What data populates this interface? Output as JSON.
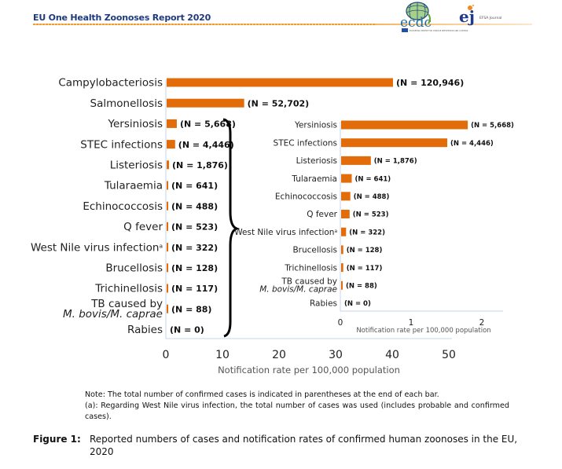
{
  "header": {
    "title": "EU One Health Zoonoses Report 2020",
    "logo_ecdc": "ecdc",
    "logo_ecdc_sub": "EUROPEAN CENTRE FOR DISEASE PREVENTION AND CONTROL",
    "logo_efsa": "ej",
    "logo_efsa_sub": "EFSA Journal"
  },
  "colors": {
    "bar": "#e36c0a",
    "axis": "#c9d6ea",
    "title": "#1f3a7a"
  },
  "chart_data": [
    {
      "type": "bar",
      "orientation": "horizontal",
      "xlabel": "Notification rate per 100,000 population",
      "xlim": [
        0,
        50
      ],
      "xticks": [
        "0",
        "10",
        "20",
        "30",
        "40",
        "50"
      ],
      "categories": [
        "Campylobacteriosis",
        "Salmonellosis",
        "Yersiniosis",
        "STEC infections",
        "Listeriosis",
        "Tularaemia",
        "Echinococcosis",
        "Q fever",
        "West Nile virus infection",
        "Brucellosis",
        "Trichinellosis",
        "TB caused by",
        "Rabies"
      ],
      "category_sub": [
        "",
        "",
        "",
        "",
        "",
        "",
        "",
        "",
        "",
        "",
        "",
        "M. bovis/M. caprae",
        ""
      ],
      "category_sup": [
        "",
        "",
        "",
        "",
        "",
        "",
        "",
        "",
        "a",
        "",
        "",
        "",
        ""
      ],
      "values": [
        40.0,
        13.7,
        1.8,
        1.5,
        0.42,
        0.15,
        0.13,
        0.12,
        0.07,
        0.03,
        0.03,
        0.02,
        0
      ],
      "labels": [
        "(N = 120,946)",
        "(N = 52,702)",
        "(N = 5,668)",
        "(N = 4,446)",
        "(N = 1,876)",
        "(N = 641)",
        "(N = 488)",
        "(N = 523)",
        "(N = 322)",
        "(N = 128)",
        "(N = 117)",
        "(N = 88)",
        "(N = 0)"
      ]
    },
    {
      "type": "bar",
      "orientation": "horizontal",
      "xlabel": "Notification rate per 100,000 population",
      "xlim": [
        0,
        2
      ],
      "xticks": [
        "0",
        "1",
        "2"
      ],
      "categories": [
        "Yersiniosis",
        "STEC infections",
        "Listeriosis",
        "Tularaemia",
        "Echinococcosis",
        "Q fever",
        "West Nile virus infection",
        "Brucellosis",
        "Trichinellosis",
        "TB caused by",
        "Rabies"
      ],
      "category_sub": [
        "",
        "",
        "",
        "",
        "",
        "",
        "",
        "",
        "",
        "M. bovis/M. caprae",
        ""
      ],
      "category_sup": [
        "",
        "",
        "",
        "",
        "",
        "",
        "a",
        "",
        "",
        "",
        ""
      ],
      "values": [
        1.79,
        1.5,
        0.42,
        0.15,
        0.13,
        0.12,
        0.07,
        0.03,
        0.03,
        0.02,
        0
      ],
      "labels": [
        "(N = 5,668)",
        "(N = 4,446)",
        "(N = 1,876)",
        "(N = 641)",
        "(N = 488)",
        "(N = 523)",
        "(N = 322)",
        "(N = 128)",
        "(N = 117)",
        "(N = 88)",
        "(N = 0)"
      ]
    }
  ],
  "notes": {
    "line1": "Note: The total number of confirmed cases is indicated in parentheses at the end of each bar.",
    "line2": "(a): Regarding West Nile virus infection, the total number of cases was used (includes probable and confirmed cases)."
  },
  "caption": {
    "label": "Figure 1:",
    "text": "Reported numbers of cases and notification rates of confirmed human zoonoses in the EU, 2020"
  }
}
